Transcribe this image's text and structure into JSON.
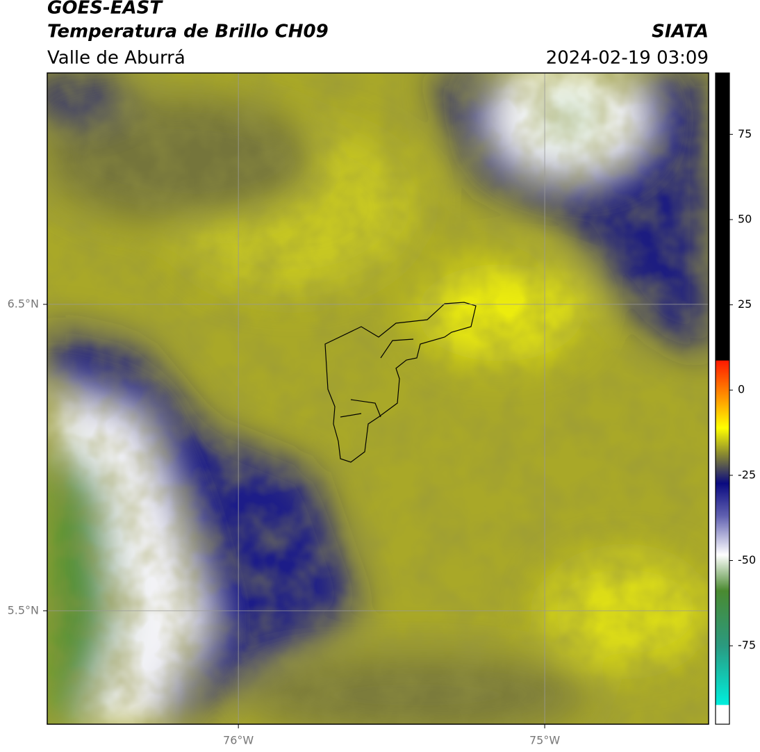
{
  "header": {
    "title": "GOES-EAST",
    "subtitle": "Temperatura de Brillo CH09",
    "region": "Valle de Aburrá",
    "source": "SIATA",
    "datetime": "2024-02-19 03:09"
  },
  "map": {
    "xlim": [
      -76.624,
      -74.465
    ],
    "ylim": [
      5.13,
      7.255
    ],
    "xticks": [
      {
        "value": -76,
        "label": "76°W"
      },
      {
        "value": -75,
        "label": "75°W"
      }
    ],
    "yticks": [
      {
        "value": 6.5,
        "label": "6.5°N"
      },
      {
        "value": 5.5,
        "label": "5.5°N"
      }
    ]
  },
  "colorbar": {
    "lim": [
      -98,
      93
    ],
    "ticks": [
      75,
      50,
      25,
      0,
      -25,
      -50,
      -75
    ]
  }
}
